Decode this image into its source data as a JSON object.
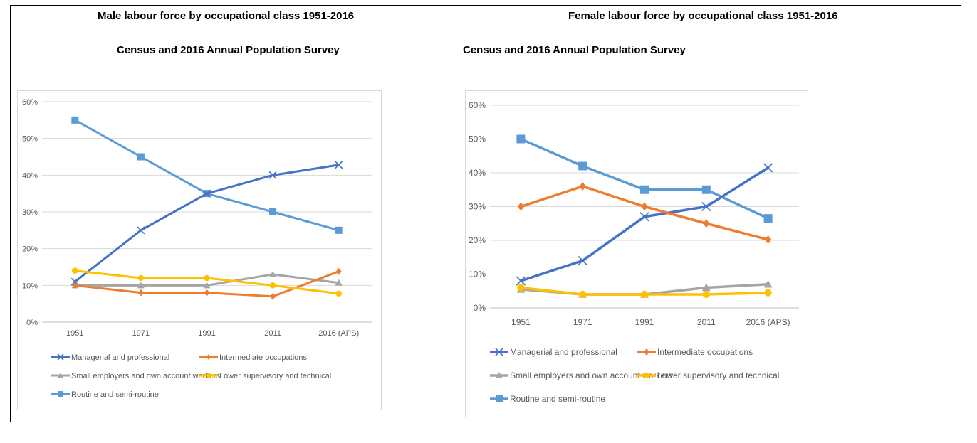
{
  "left_header": {
    "title": "Male labour force by occupational class 1951-2016",
    "subtitle": "Census and 2016 Annual Population Survey"
  },
  "right_header": {
    "title": "Female labour force by occupational class 1951-2016",
    "subtitle": "Census and 2016 Annual Population Survey"
  },
  "colors": {
    "managerial": "#4472C4",
    "intermediate": "#ED7D31",
    "small_employers": "#A5A5A5",
    "lower_supervisory": "#FFC000",
    "routine": "#5B9BD5",
    "grid": "#D9D9D9",
    "axis_text": "#595959"
  },
  "chart_data": [
    {
      "type": "line",
      "categories": [
        "1951",
        "1971",
        "1991",
        "2011",
        "2016 (APS)"
      ],
      "ylim": [
        0,
        60
      ],
      "yticks": [
        "0%",
        "10%",
        "20%",
        "30%",
        "40%",
        "50%",
        "60%"
      ],
      "grid": true,
      "legend_position": "bottom",
      "series": [
        {
          "name": "Managerial and professional",
          "marker": "x",
          "values": [
            11,
            25,
            35,
            40,
            42.8
          ]
        },
        {
          "name": "Intermediate occupations",
          "marker": "diamond",
          "values": [
            10,
            8,
            8,
            7,
            13.8
          ]
        },
        {
          "name": "Small employers and own account workers",
          "marker": "triangle",
          "values": [
            10,
            10,
            10,
            13,
            10.7
          ]
        },
        {
          "name": "Lower supervisory and technical",
          "marker": "circle",
          "values": [
            14,
            12,
            12,
            10,
            7.8
          ]
        },
        {
          "name": "Routine and semi-routine",
          "marker": "square",
          "values": [
            55,
            45,
            35,
            30,
            25
          ]
        }
      ]
    },
    {
      "type": "line",
      "categories": [
        "1951",
        "1971",
        "1991",
        "2011",
        "2016 (APS)"
      ],
      "ylim": [
        0,
        60
      ],
      "yticks": [
        "0%",
        "10%",
        "20%",
        "30%",
        "40%",
        "50%",
        "60%"
      ],
      "grid": true,
      "legend_position": "bottom",
      "series": [
        {
          "name": "Managerial and professional",
          "marker": "x",
          "values": [
            8,
            14,
            27,
            30,
            41.5
          ]
        },
        {
          "name": "Intermediate occupations",
          "marker": "diamond",
          "values": [
            30,
            36,
            30,
            25,
            20.2
          ]
        },
        {
          "name": "Small employers and own account workers",
          "marker": "triangle",
          "values": [
            5.5,
            4,
            4,
            6,
            7
          ]
        },
        {
          "name": "Lower supervisory and technical",
          "marker": "circle",
          "values": [
            6,
            4,
            4,
            4,
            4.5
          ]
        },
        {
          "name": "Routine and semi-routine",
          "marker": "square",
          "values": [
            50,
            42,
            35,
            35,
            26.5
          ]
        }
      ]
    }
  ]
}
